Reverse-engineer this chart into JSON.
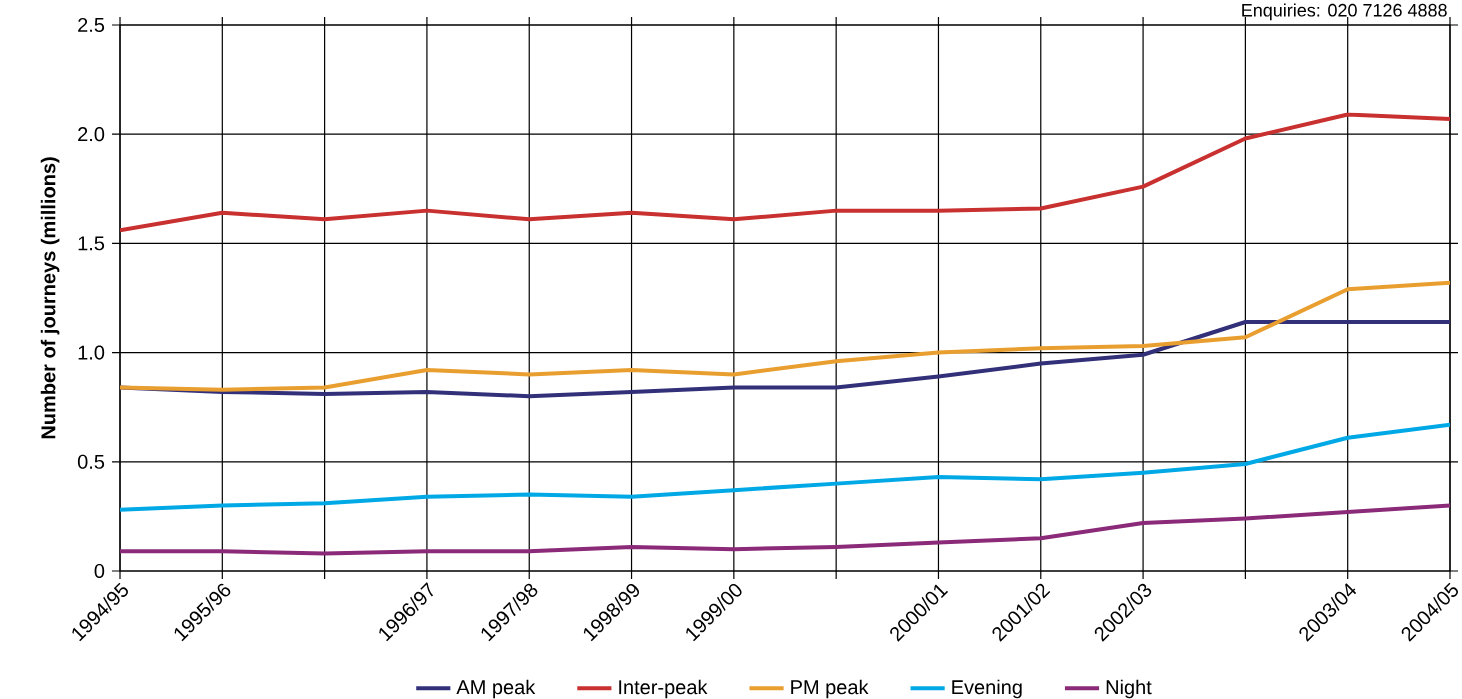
{
  "chart_data": {
    "type": "line",
    "ylabel": "Number of journeys (millions)",
    "annotations": [
      "Enquiries: 020 7126 4888"
    ],
    "categories": [
      "1994/95",
      "1995/96",
      null,
      "1996/97",
      "1997/98",
      "1998/99",
      "1999/00",
      null,
      "2000/01",
      "2001/02",
      "2002/03",
      null,
      "2003/04",
      "2004/05"
    ],
    "ylim": [
      0,
      2.5
    ],
    "yticks": [
      0,
      0.5,
      {
        "value": 1,
        "label": "1.0"
      },
      1.5,
      {
        "value": 2,
        "label": "2.0"
      },
      2.5
    ],
    "grid": true,
    "legend": "bottom",
    "marker": "none",
    "line_style": "solid",
    "series": [
      {
        "name": "AM peak",
        "color": "#33307a",
        "values": [
          0.84,
          0.82,
          0.81,
          0.82,
          0.8,
          0.82,
          0.84,
          0.84,
          0.89,
          0.95,
          0.99,
          1.14,
          1.14,
          1.14
        ]
      },
      {
        "name": "Inter-peak",
        "color": "#c8312f",
        "values": [
          1.56,
          1.64,
          1.61,
          1.65,
          1.61,
          1.64,
          1.61,
          1.65,
          1.65,
          1.66,
          1.76,
          1.98,
          2.09,
          2.07
        ]
      },
      {
        "name": "PM peak",
        "color": "#e99e30",
        "values": [
          0.84,
          0.83,
          0.84,
          0.92,
          0.9,
          0.92,
          0.9,
          0.96,
          1.0,
          1.02,
          1.03,
          1.07,
          1.29,
          1.32
        ]
      },
      {
        "name": "Evening",
        "color": "#00a9e6",
        "values": [
          0.28,
          0.3,
          0.31,
          0.34,
          0.35,
          0.34,
          0.37,
          0.4,
          0.43,
          0.42,
          0.45,
          0.49,
          0.61,
          0.67
        ]
      },
      {
        "name": "Night",
        "color": "#8a2a78",
        "values": [
          0.09,
          0.09,
          0.08,
          0.09,
          0.09,
          0.11,
          0.1,
          0.11,
          0.13,
          0.15,
          0.22,
          0.24,
          0.27,
          0.3
        ]
      }
    ]
  }
}
